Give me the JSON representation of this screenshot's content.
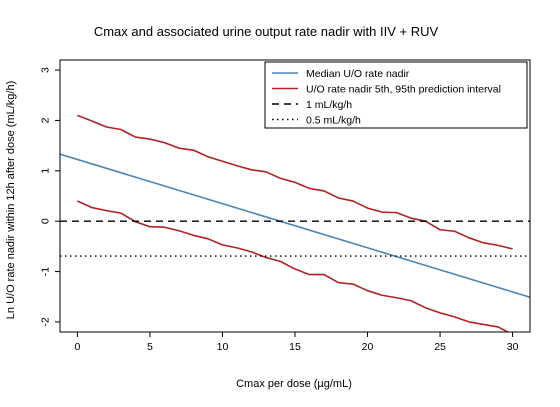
{
  "chart_data": {
    "type": "line",
    "title": "Cmax and associated urine output rate nadir with IIV + RUV",
    "xlabel": "Cmax per dose (µg/mL)",
    "ylabel": "Ln U/O rate nadir within 12h after dose (mL/kg/h)",
    "xlim": [
      -1.2,
      31.2
    ],
    "ylim": [
      -2.2,
      3.2
    ],
    "x_ticks": [
      0,
      5,
      10,
      15,
      20,
      25,
      30
    ],
    "y_ticks": [
      -2,
      -1,
      0,
      1,
      2,
      3
    ],
    "grid": false,
    "legend_position": "top-right",
    "series": [
      {
        "name": "Median U/O rate nadir",
        "style": "solid",
        "color": "#4a86b8",
        "x": [
          -1.2,
          31.2
        ],
        "y": [
          1.33,
          -1.51
        ]
      },
      {
        "name": "U/O rate nadir 5th, 95th prediction interval",
        "style": "solid",
        "color": "#b22222",
        "band": "upper",
        "x": [
          0,
          1,
          2,
          3,
          4,
          5,
          6,
          7,
          8,
          9,
          10,
          11,
          12,
          13,
          14,
          15,
          16,
          17,
          18,
          19,
          20,
          21,
          22,
          23,
          24,
          25,
          26,
          27,
          28,
          29,
          30
        ],
        "y": [
          2.1,
          1.99,
          1.87,
          1.82,
          1.67,
          1.63,
          1.56,
          1.45,
          1.41,
          1.28,
          1.19,
          1.1,
          1.02,
          0.98,
          0.85,
          0.77,
          0.65,
          0.6,
          0.46,
          0.4,
          0.26,
          0.18,
          0.17,
          0.06,
          0.0,
          -0.17,
          -0.2,
          -0.33,
          -0.43,
          -0.48,
          -0.55
        ]
      },
      {
        "name": "U/O rate nadir 5th, 95th prediction interval",
        "style": "solid",
        "color": "#b22222",
        "band": "lower",
        "x": [
          0,
          1,
          2,
          3,
          4,
          5,
          6,
          7,
          8,
          9,
          10,
          11,
          12,
          13,
          14,
          15,
          16,
          17,
          18,
          19,
          20,
          21,
          22,
          23,
          24,
          25,
          26,
          27,
          28,
          29,
          30
        ],
        "y": [
          0.4,
          0.27,
          0.21,
          0.16,
          -0.01,
          -0.11,
          -0.12,
          -0.19,
          -0.28,
          -0.35,
          -0.47,
          -0.53,
          -0.61,
          -0.72,
          -0.8,
          -0.95,
          -1.06,
          -1.06,
          -1.22,
          -1.25,
          -1.38,
          -1.47,
          -1.52,
          -1.58,
          -1.72,
          -1.82,
          -1.9,
          -2.0,
          -2.05,
          -2.1,
          -2.25
        ]
      },
      {
        "name": "1 mL/kg/h",
        "style": "dashed",
        "color": "#000000",
        "x": [
          -1.2,
          31.2
        ],
        "y": [
          0,
          0
        ]
      },
      {
        "name": "0.5 mL/kg/h",
        "style": "dotted",
        "color": "#000000",
        "x": [
          -1.2,
          31.2
        ],
        "y": [
          -0.693,
          -0.693
        ]
      }
    ],
    "legend": [
      {
        "label": "Median U/O rate nadir",
        "style": "solid",
        "color": "#4a86b8"
      },
      {
        "label": "U/O rate nadir 5th, 95th prediction interval",
        "style": "solid",
        "color": "#b22222"
      },
      {
        "label": "1 mL/kg/h",
        "style": "dashed",
        "color": "#000000"
      },
      {
        "label": "0.5 mL/kg/h",
        "style": "dotted",
        "color": "#000000"
      }
    ]
  }
}
